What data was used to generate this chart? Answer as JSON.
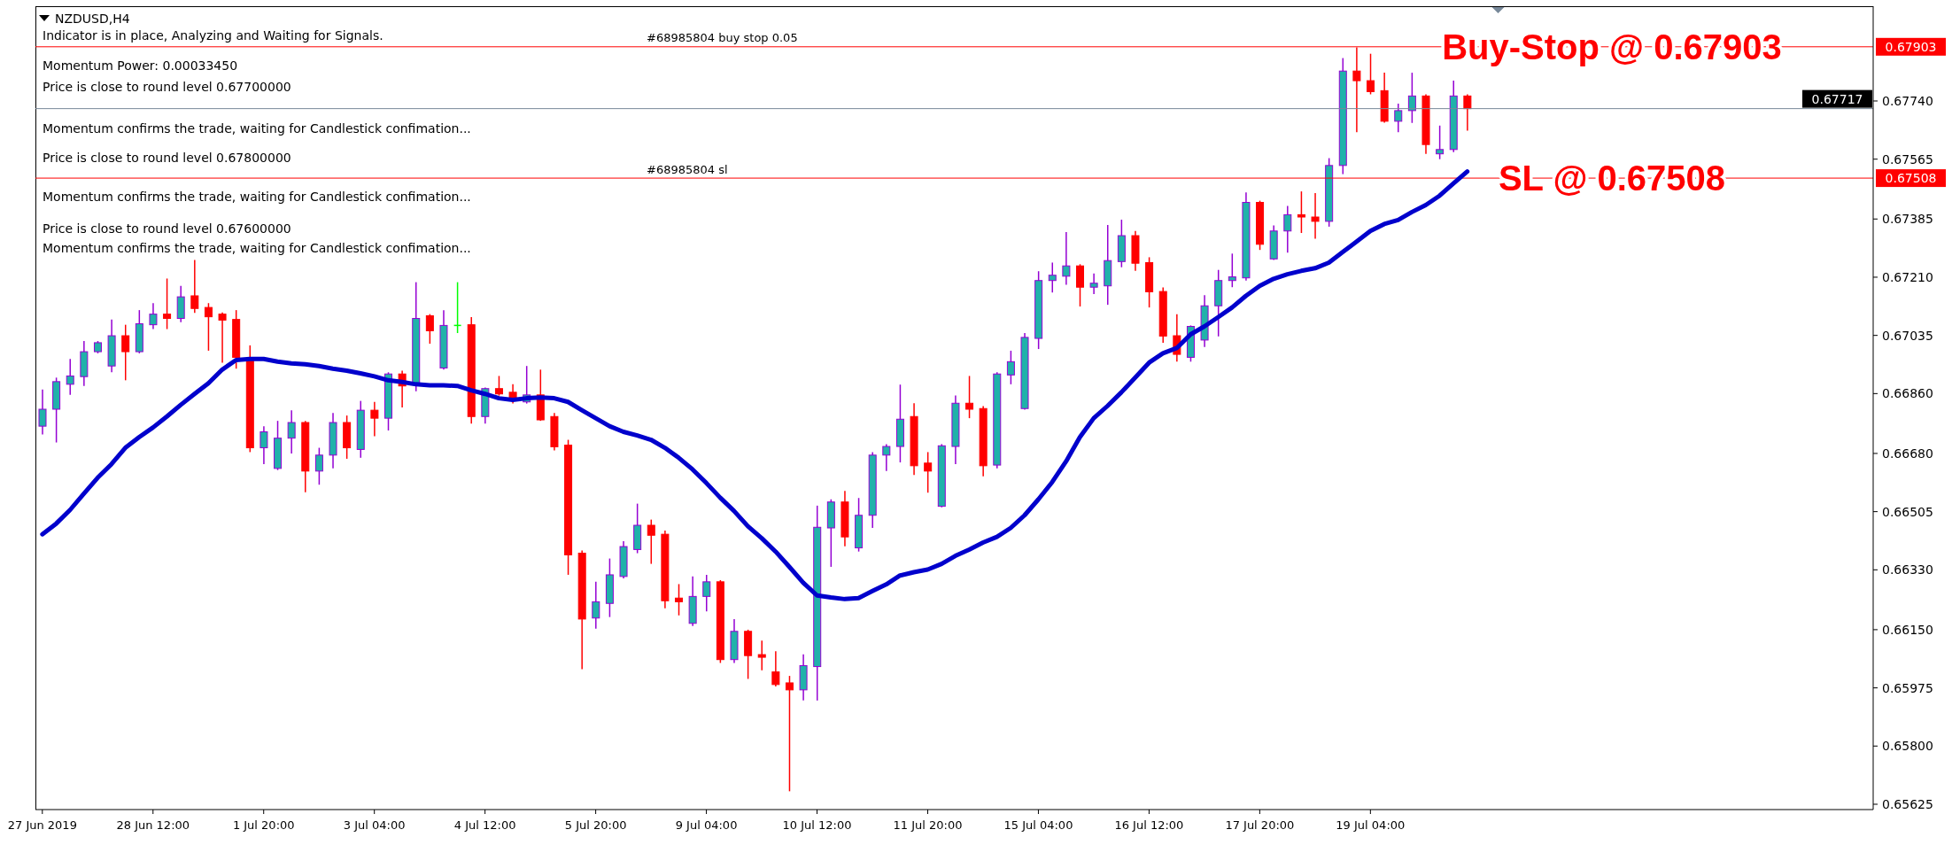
{
  "chart_data": {
    "type": "candlestick",
    "title": "NZDUSD,H4",
    "categories": [
      "27 Jun 2019",
      null,
      null,
      null,
      null,
      null,
      null,
      null,
      "28 Jun 12:00",
      null,
      null,
      null,
      null,
      null,
      null,
      null,
      "1 Jul 20:00",
      null,
      null,
      null,
      null,
      null,
      null,
      null,
      "3 Jul 04:00",
      null,
      null,
      null,
      null,
      null,
      null,
      null,
      "4 Jul 12:00",
      null,
      null,
      null,
      null,
      null,
      null,
      null,
      "5 Jul 20:00",
      null,
      null,
      null,
      null,
      null,
      null,
      null,
      "9 Jul 04:00",
      null,
      null,
      null,
      null,
      null,
      null,
      null,
      "10 Jul 12:00",
      null,
      null,
      null,
      null,
      null,
      null,
      null,
      "11 Jul 20:00",
      null,
      null,
      null,
      null,
      null,
      null,
      null,
      "15 Jul 04:00",
      null,
      null,
      null,
      null,
      null,
      null,
      null,
      "16 Jul 12:00",
      null,
      null,
      null,
      null,
      null,
      null,
      null,
      "17 Jul 20:00",
      null,
      null,
      null,
      null,
      null,
      null,
      null,
      "19 Jul 04:00",
      null,
      null,
      null,
      null,
      null,
      null,
      null
    ],
    "ohlc": [
      [
        0.66762,
        0.66872,
        0.66737,
        0.66813
      ],
      [
        0.66813,
        0.66908,
        0.66713,
        0.66896
      ],
      [
        0.66888,
        0.66964,
        0.66856,
        0.66913
      ],
      [
        0.66911,
        0.67018,
        0.66883,
        0.66986
      ],
      [
        0.66986,
        0.67018,
        0.66981,
        0.67013
      ],
      [
        0.66943,
        0.67083,
        0.66924,
        0.67034
      ],
      [
        0.67034,
        0.67067,
        0.669,
        0.66986
      ],
      [
        0.66986,
        0.67111,
        0.66981,
        0.6707
      ],
      [
        0.67067,
        0.67132,
        0.67054,
        0.67099
      ],
      [
        0.67099,
        0.67206,
        0.67054,
        0.67086
      ],
      [
        0.67086,
        0.67184,
        0.67075,
        0.67151
      ],
      [
        0.67154,
        0.67262,
        0.67103,
        0.67116
      ],
      [
        0.67119,
        0.67132,
        0.66989,
        0.67091
      ],
      [
        0.67099,
        0.67104,
        0.66953,
        0.67081
      ],
      [
        0.67083,
        0.67111,
        0.66935,
        0.66969
      ],
      [
        0.66964,
        0.67005,
        0.66684,
        0.66697
      ],
      [
        0.66697,
        0.66762,
        0.66648,
        0.66745
      ],
      [
        0.66635,
        0.66778,
        0.6663,
        0.66726
      ],
      [
        0.66726,
        0.6681,
        0.6668,
        0.66773
      ],
      [
        0.66773,
        0.66778,
        0.66563,
        0.66627
      ],
      [
        0.66627,
        0.66697,
        0.66586,
        0.66675
      ],
      [
        0.66675,
        0.66802,
        0.66635,
        0.66773
      ],
      [
        0.66773,
        0.66794,
        0.66664,
        0.66697
      ],
      [
        0.66692,
        0.66838,
        0.66667,
        0.6681
      ],
      [
        0.6681,
        0.66835,
        0.66732,
        0.66786
      ],
      [
        0.66786,
        0.66924,
        0.66749,
        0.66919
      ],
      [
        0.66919,
        0.66929,
        0.66818,
        0.66883
      ],
      [
        0.66888,
        0.67195,
        0.66867,
        0.67086
      ],
      [
        0.67094,
        0.67099,
        0.6701,
        0.67049
      ],
      [
        0.66937,
        0.67111,
        0.66932,
        0.67065
      ],
      [
        0.67065,
        0.67195,
        0.67042,
        0.67065
      ],
      [
        0.67067,
        0.6709,
        0.6677,
        0.66791
      ],
      [
        0.66791,
        0.66878,
        0.6677,
        0.66875
      ],
      [
        0.66875,
        0.66913,
        0.66854,
        0.66859
      ],
      [
        0.66864,
        0.66888,
        0.6683,
        0.66843
      ],
      [
        0.66835,
        0.66943,
        0.6683,
        0.66856
      ],
      [
        0.66856,
        0.66932,
        0.66778,
        0.66781
      ],
      [
        0.66791,
        0.66802,
        0.66689,
        0.667
      ],
      [
        0.66705,
        0.66721,
        0.66315,
        0.66375
      ],
      [
        0.6638,
        0.66388,
        0.66031,
        0.66182
      ],
      [
        0.66185,
        0.66294,
        0.66153,
        0.66234
      ],
      [
        0.66229,
        0.66364,
        0.66188,
        0.66315
      ],
      [
        0.6631,
        0.66416,
        0.66304,
        0.664
      ],
      [
        0.66391,
        0.66529,
        0.6638,
        0.66464
      ],
      [
        0.66464,
        0.66481,
        0.66348,
        0.66434
      ],
      [
        0.66437,
        0.66448,
        0.66214,
        0.66237
      ],
      [
        0.66245,
        0.66287,
        0.66193,
        0.66234
      ],
      [
        0.66169,
        0.6631,
        0.66161,
        0.6625
      ],
      [
        0.6625,
        0.66315,
        0.66205,
        0.66294
      ],
      [
        0.66294,
        0.66299,
        0.6605,
        0.6606
      ],
      [
        0.6606,
        0.66182,
        0.6605,
        0.66145
      ],
      [
        0.66145,
        0.6615,
        0.66002,
        0.66072
      ],
      [
        0.66075,
        0.66117,
        0.66028,
        0.66067
      ],
      [
        0.66023,
        0.66085,
        0.65979,
        0.65985
      ],
      [
        0.6599,
        0.66011,
        0.65664,
        0.65969
      ],
      [
        0.65969,
        0.66076,
        0.65937,
        0.66042
      ],
      [
        0.66039,
        0.66523,
        0.65937,
        0.66458
      ],
      [
        0.66456,
        0.66542,
        0.66339,
        0.66534
      ],
      [
        0.66534,
        0.66567,
        0.66401,
        0.66429
      ],
      [
        0.66396,
        0.66546,
        0.66385,
        0.66494
      ],
      [
        0.66494,
        0.66684,
        0.66456,
        0.66675
      ],
      [
        0.66675,
        0.66708,
        0.66627,
        0.66701
      ],
      [
        0.66701,
        0.66887,
        0.66653,
        0.66783
      ],
      [
        0.66791,
        0.66831,
        0.66615,
        0.66643
      ],
      [
        0.66651,
        0.66684,
        0.66562,
        0.66627
      ],
      [
        0.66521,
        0.66708,
        0.66518,
        0.66703
      ],
      [
        0.66701,
        0.66854,
        0.66648,
        0.66831
      ],
      [
        0.66831,
        0.66913,
        0.66786,
        0.66813
      ],
      [
        0.66815,
        0.66822,
        0.66611,
        0.66643
      ],
      [
        0.66645,
        0.66924,
        0.66635,
        0.66919
      ],
      [
        0.66916,
        0.66989,
        0.66888,
        0.66956
      ],
      [
        0.66815,
        0.67042,
        0.66812,
        0.67029
      ],
      [
        0.67026,
        0.67228,
        0.66994,
        0.672
      ],
      [
        0.672,
        0.67254,
        0.67164,
        0.67216
      ],
      [
        0.67213,
        0.67346,
        0.67187,
        0.67244
      ],
      [
        0.67244,
        0.67249,
        0.67122,
        0.6718
      ],
      [
        0.6718,
        0.67221,
        0.67159,
        0.67192
      ],
      [
        0.67184,
        0.67367,
        0.67127,
        0.6726
      ],
      [
        0.67257,
        0.67383,
        0.6724,
        0.67335
      ],
      [
        0.67335,
        0.67349,
        0.67229,
        0.67252
      ],
      [
        0.67254,
        0.6727,
        0.67119,
        0.67166
      ],
      [
        0.67167,
        0.67179,
        0.67013,
        0.67033
      ],
      [
        0.67034,
        0.67099,
        0.66956,
        0.66978
      ],
      [
        0.66969,
        0.67065,
        0.66956,
        0.67062
      ],
      [
        0.67021,
        0.67156,
        0.67,
        0.67124
      ],
      [
        0.67124,
        0.67232,
        0.67032,
        0.672
      ],
      [
        0.672,
        0.67281,
        0.6718,
        0.67211
      ],
      [
        0.67208,
        0.67465,
        0.672,
        0.67435
      ],
      [
        0.67435,
        0.6744,
        0.67292,
        0.67309
      ],
      [
        0.67265,
        0.67366,
        0.67262,
        0.67349
      ],
      [
        0.67349,
        0.67424,
        0.67284,
        0.67398
      ],
      [
        0.67398,
        0.67468,
        0.67343,
        0.67391
      ],
      [
        0.67391,
        0.67463,
        0.67326,
        0.67378
      ],
      [
        0.67378,
        0.67568,
        0.67362,
        0.67546
      ],
      [
        0.67546,
        0.67869,
        0.6752,
        0.6783
      ],
      [
        0.6783,
        0.67901,
        0.67646,
        0.67801
      ],
      [
        0.67801,
        0.67882,
        0.6776,
        0.67768
      ],
      [
        0.67771,
        0.67825,
        0.67675,
        0.67679
      ],
      [
        0.67679,
        0.67732,
        0.67646,
        0.67711
      ],
      [
        0.67711,
        0.67825,
        0.67674,
        0.67755
      ],
      [
        0.67755,
        0.6776,
        0.67581,
        0.67609
      ],
      [
        0.67581,
        0.67666,
        0.67565,
        0.67594
      ],
      [
        0.67594,
        0.67801,
        0.67586,
        0.67755
      ],
      [
        0.67755,
        0.6776,
        0.67651,
        0.67717
      ]
    ],
    "colors": [
      "#20b2aa",
      "#20b2aa",
      "#20b2aa",
      "#20b2aa",
      "#20b2aa",
      "#20b2aa",
      "#ff0000",
      "#20b2aa",
      "#20b2aa",
      "#ff0000",
      "#20b2aa",
      "#ff0000",
      "#ff0000",
      "#ff0000",
      "#ff0000",
      "#ff0000",
      "#20b2aa",
      "#20b2aa",
      "#20b2aa",
      "#ff0000",
      "#20b2aa",
      "#20b2aa",
      "#ff0000",
      "#20b2aa",
      "#ff0000",
      "#20b2aa",
      "#ff0000",
      "#20b2aa",
      "#ff0000",
      "#20b2aa",
      "#00ff00",
      "#ff0000",
      "#20b2aa",
      "#ff0000",
      "#ff0000",
      "#20b2aa",
      "#ff0000",
      "#ff0000",
      "#ff0000",
      "#ff0000",
      "#20b2aa",
      "#20b2aa",
      "#20b2aa",
      "#20b2aa",
      "#ff0000",
      "#ff0000",
      "#ff0000",
      "#20b2aa",
      "#20b2aa",
      "#ff0000",
      "#20b2aa",
      "#ff0000",
      "#ff0000",
      "#ff0000",
      "#ff0000",
      "#20b2aa",
      "#20b2aa",
      "#20b2aa",
      "#ff0000",
      "#20b2aa",
      "#20b2aa",
      "#20b2aa",
      "#20b2aa",
      "#ff0000",
      "#ff0000",
      "#20b2aa",
      "#20b2aa",
      "#ff0000",
      "#ff0000",
      "#20b2aa",
      "#20b2aa",
      "#20b2aa",
      "#20b2aa",
      "#20b2aa",
      "#20b2aa",
      "#ff0000",
      "#20b2aa",
      "#20b2aa",
      "#20b2aa",
      "#ff0000",
      "#ff0000",
      "#ff0000",
      "#ff0000",
      "#20b2aa",
      "#20b2aa",
      "#20b2aa",
      "#20b2aa",
      "#20b2aa",
      "#ff0000",
      "#20b2aa",
      "#20b2aa",
      "#ff0000",
      "#ff0000",
      "#20b2aa",
      "#20b2aa",
      "#ff0000",
      "#ff0000",
      "#ff0000",
      "#20b2aa",
      "#20b2aa",
      "#ff0000",
      "#20b2aa",
      "#20b2aa",
      "#ff0000"
    ],
    "series": [
      {
        "type": "line",
        "color": "#0000cc",
        "values": [
          0.66437,
          0.66469,
          0.6651,
          0.66559,
          0.66607,
          0.66648,
          0.66697,
          0.66729,
          0.66758,
          0.66791,
          0.66826,
          0.66859,
          0.66891,
          0.66932,
          0.66961,
          0.66964,
          0.66964,
          0.66956,
          0.66951,
          0.66948,
          0.66943,
          0.66935,
          0.66929,
          0.66921,
          0.66912,
          0.669,
          0.66895,
          0.66888,
          0.66885,
          0.66885,
          0.66883,
          0.6687,
          0.66859,
          0.66846,
          0.66841,
          0.66846,
          0.66848,
          0.66846,
          0.66835,
          0.6681,
          0.66786,
          0.66762,
          0.66745,
          0.66734,
          0.66721,
          0.66697,
          0.66667,
          0.66632,
          0.66591,
          0.66547,
          0.66507,
          0.66461,
          0.66425,
          0.66385,
          0.66339,
          0.66291,
          0.66253,
          0.66247,
          0.66242,
          0.66245,
          0.66266,
          0.66286,
          0.66313,
          0.66323,
          0.66331,
          0.66348,
          0.66372,
          0.66391,
          0.66412,
          0.66429,
          0.66456,
          0.66494,
          0.66542,
          0.66594,
          0.66656,
          0.66729,
          0.66786,
          0.66823,
          0.66864,
          0.66908,
          0.66953,
          0.66981,
          0.66997,
          0.67038,
          0.67062,
          0.6709,
          0.67119,
          0.67154,
          0.67184,
          0.67205,
          0.67219,
          0.67229,
          0.67237,
          0.67254,
          0.67286,
          0.67317,
          0.67349,
          0.6737,
          0.67382,
          0.67406,
          0.67427,
          0.67455,
          0.67492,
          0.67528
        ]
      }
    ],
    "ylim": [
      0.65609,
      0.68025
    ],
    "yticks": [
      0.65625,
      {
        "value": 0.658,
        "label": "0.65800"
      },
      0.65975,
      {
        "value": 0.6615,
        "label": "0.66150"
      },
      {
        "value": 0.6633,
        "label": "0.66330"
      },
      0.66505,
      {
        "value": 0.6668,
        "label": "0.66680"
      },
      {
        "value": 0.6686,
        "label": "0.66860"
      },
      0.67035,
      {
        "value": 0.6721,
        "label": "0.67210"
      },
      0.67385,
      0.67508,
      0.67565,
      {
        "value": 0.6774,
        "label": "0.67740"
      },
      0.67903
    ],
    "ref_lines": [
      {
        "axis": "y",
        "value": 0.67903,
        "label": "Buy-Stop @ 0.67903",
        "color": "#ff0000"
      },
      {
        "axis": "y",
        "value": 0.67717,
        "label": "0.67717",
        "color": "#778899"
      },
      {
        "axis": "y",
        "value": 0.67508,
        "label": "SL @ 0.67508",
        "color": "#ff0000"
      }
    ],
    "annotations": [
      "Indicator is in place, Analyzing and Waiting for Signals.",
      "Momentum Power: 0.00033450",
      "Price is close to round level 0.67700000",
      "Momentum confirms the trade, waiting for Candlestick confimation...",
      "Price is close to round level 0.67800000",
      "Momentum confirms the trade, waiting for Candlestick confimation...",
      "Price is close to round level 0.67600000",
      "Momentum confirms the trade, waiting for Candlestick confimation...",
      {
        "text": "#68985804 buy stop 0.05",
        "y": 0.67903
      },
      {
        "text": "#68985804 sl",
        "y": 0.67508
      }
    ]
  }
}
